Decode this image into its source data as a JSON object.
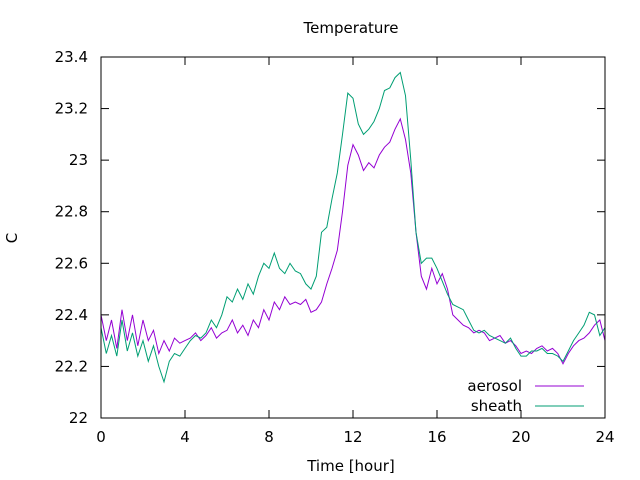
{
  "chart_data": {
    "type": "line",
    "title": "Temperature",
    "xlabel": "Time [hour]",
    "ylabel": "C",
    "xlim": [
      0,
      24
    ],
    "ylim": [
      22,
      23.4
    ],
    "x_ticks": [
      "0",
      "4",
      "8",
      "12",
      "16",
      "20",
      "24"
    ],
    "y_ticks": [
      "22",
      "22.2",
      "22.4",
      "22.6",
      "22.8",
      "23",
      "23.2",
      "23.4"
    ],
    "grid": false,
    "legend_position": "bottom-right",
    "series": [
      {
        "name": "aerosol",
        "color": "#9400d3",
        "x": [
          0,
          0.25,
          0.5,
          0.75,
          1,
          1.25,
          1.5,
          1.75,
          2,
          2.25,
          2.5,
          2.75,
          3,
          3.25,
          3.5,
          3.75,
          4,
          4.25,
          4.5,
          4.75,
          5,
          5.25,
          5.5,
          5.75,
          6,
          6.25,
          6.5,
          6.75,
          7,
          7.25,
          7.5,
          7.75,
          8,
          8.25,
          8.5,
          8.75,
          9,
          9.25,
          9.5,
          9.75,
          10,
          10.25,
          10.5,
          10.75,
          11,
          11.25,
          11.5,
          11.75,
          12,
          12.25,
          12.5,
          12.75,
          13,
          13.25,
          13.5,
          13.75,
          14,
          14.25,
          14.5,
          14.75,
          15,
          15.25,
          15.5,
          15.75,
          16,
          16.25,
          16.5,
          16.75,
          17,
          17.25,
          17.5,
          17.75,
          18,
          18.25,
          18.5,
          18.75,
          19,
          19.25,
          19.5,
          19.75,
          20,
          20.25,
          20.5,
          20.75,
          21,
          21.25,
          21.5,
          21.75,
          22,
          22.25,
          22.5,
          22.75,
          23,
          23.25,
          23.5,
          23.75,
          24
        ],
        "y": [
          22.4,
          22.3,
          22.38,
          22.27,
          22.42,
          22.3,
          22.4,
          22.28,
          22.38,
          22.3,
          22.34,
          22.25,
          22.3,
          22.26,
          22.31,
          22.29,
          22.3,
          22.31,
          22.33,
          22.3,
          22.32,
          22.35,
          22.31,
          22.33,
          22.34,
          22.38,
          22.33,
          22.36,
          22.32,
          22.38,
          22.35,
          22.42,
          22.38,
          22.45,
          22.42,
          22.47,
          22.44,
          22.45,
          22.44,
          22.46,
          22.41,
          22.42,
          22.45,
          22.52,
          22.58,
          22.65,
          22.8,
          22.98,
          23.06,
          23.02,
          22.96,
          22.99,
          22.97,
          23.02,
          23.05,
          23.07,
          23.12,
          23.16,
          23.08,
          22.95,
          22.72,
          22.55,
          22.5,
          22.58,
          22.52,
          22.56,
          22.5,
          22.4,
          22.38,
          22.36,
          22.35,
          22.33,
          22.34,
          22.33,
          22.3,
          22.31,
          22.32,
          22.29,
          22.3,
          22.28,
          22.25,
          22.26,
          22.25,
          22.27,
          22.28,
          22.26,
          22.27,
          22.25,
          22.21,
          22.25,
          22.28,
          22.3,
          22.31,
          22.33,
          22.36,
          22.38,
          22.3
        ]
      },
      {
        "name": "sheath",
        "color": "#009e73",
        "x": [
          0,
          0.25,
          0.5,
          0.75,
          1,
          1.25,
          1.5,
          1.75,
          2,
          2.25,
          2.5,
          2.75,
          3,
          3.25,
          3.5,
          3.75,
          4,
          4.25,
          4.5,
          4.75,
          5,
          5.25,
          5.5,
          5.75,
          6,
          6.25,
          6.5,
          6.75,
          7,
          7.25,
          7.5,
          7.75,
          8,
          8.25,
          8.5,
          8.75,
          9,
          9.25,
          9.5,
          9.75,
          10,
          10.25,
          10.5,
          10.75,
          11,
          11.25,
          11.5,
          11.75,
          12,
          12.25,
          12.5,
          12.75,
          13,
          13.25,
          13.5,
          13.75,
          14,
          14.25,
          14.5,
          14.75,
          15,
          15.25,
          15.5,
          15.75,
          16,
          16.25,
          16.5,
          16.75,
          17,
          17.25,
          17.5,
          17.75,
          18,
          18.25,
          18.5,
          18.75,
          19,
          19.25,
          19.5,
          19.75,
          20,
          20.25,
          20.5,
          20.75,
          21,
          21.25,
          21.5,
          21.75,
          22,
          22.25,
          22.5,
          22.75,
          23,
          23.25,
          23.5,
          23.75,
          24
        ],
        "y": [
          22.35,
          22.25,
          22.32,
          22.24,
          22.38,
          22.26,
          22.33,
          22.24,
          22.3,
          22.22,
          22.28,
          22.2,
          22.14,
          22.22,
          22.25,
          22.24,
          22.27,
          22.3,
          22.32,
          22.31,
          22.33,
          22.38,
          22.35,
          22.4,
          22.47,
          22.45,
          22.5,
          22.46,
          22.52,
          22.48,
          22.55,
          22.6,
          22.58,
          22.64,
          22.58,
          22.56,
          22.6,
          22.57,
          22.56,
          22.52,
          22.5,
          22.55,
          22.72,
          22.74,
          22.85,
          22.95,
          23.1,
          23.26,
          23.24,
          23.14,
          23.1,
          23.12,
          23.15,
          23.2,
          23.27,
          23.28,
          23.32,
          23.34,
          23.25,
          23.0,
          22.72,
          22.6,
          22.62,
          22.62,
          22.58,
          22.53,
          22.48,
          22.44,
          22.43,
          22.42,
          22.38,
          22.34,
          22.33,
          22.34,
          22.32,
          22.31,
          22.3,
          22.29,
          22.31,
          22.27,
          22.24,
          22.24,
          22.26,
          22.26,
          22.27,
          22.25,
          22.25,
          22.24,
          22.22,
          22.26,
          22.3,
          22.33,
          22.36,
          22.41,
          22.4,
          22.32,
          22.35
        ]
      }
    ]
  }
}
